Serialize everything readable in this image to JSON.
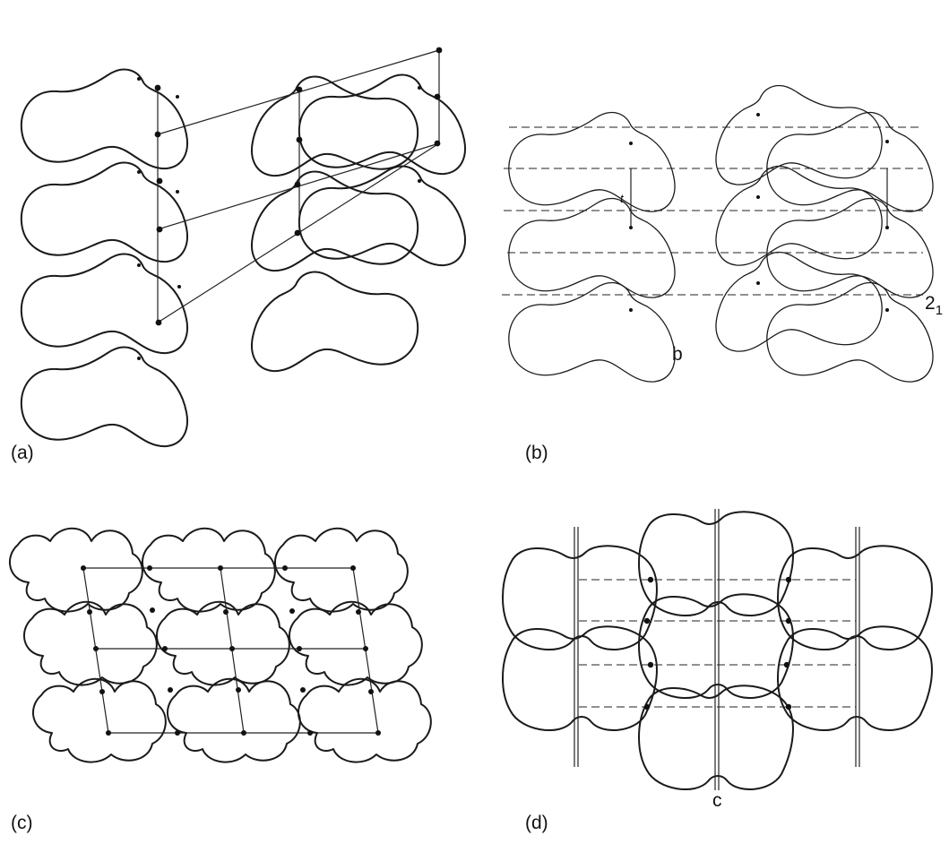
{
  "panels": {
    "a": {
      "caption": "(a)"
    },
    "b": {
      "caption": "(b)",
      "axis_label": "b",
      "symmetry_label": "2",
      "symmetry_subscript": "1",
      "vector_label": "t"
    },
    "c": {
      "caption": "(c)"
    },
    "d": {
      "caption": "(d)",
      "axis_label": "c"
    }
  }
}
